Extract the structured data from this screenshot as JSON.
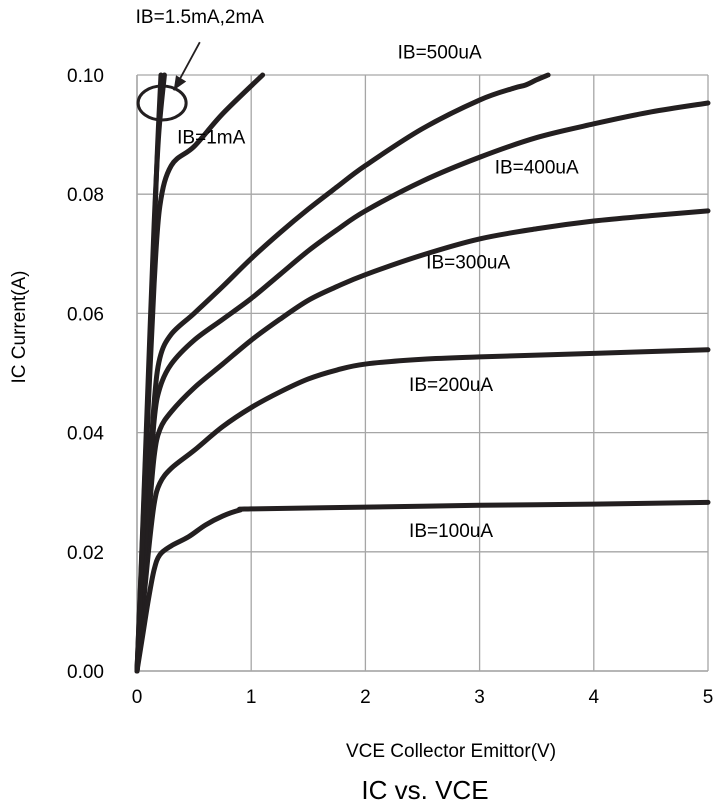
{
  "chart_data": {
    "type": "line",
    "title": "IC vs. VCE",
    "xlabel": "VCE Collector Emittor(V)",
    "ylabel": "IC Current(A)",
    "xlim": [
      0,
      5
    ],
    "ylim": [
      0,
      0.1
    ],
    "x_ticks": [
      0,
      1,
      2,
      3,
      4,
      5
    ],
    "x_tick_labels": [
      "0",
      "1",
      "2",
      "3",
      "4",
      "5"
    ],
    "y_ticks": [
      0,
      0.02,
      0.04,
      0.06,
      0.08,
      0.1
    ],
    "y_tick_labels": [
      "0.00",
      "0.02",
      "0.04",
      "0.06",
      "0.08",
      "0.10"
    ],
    "grid": true,
    "line_color": "#231f20",
    "grid_color": "#a6a6a6",
    "series": [
      {
        "name": "IB=100uA",
        "points": [
          [
            0,
            0
          ],
          [
            0.05,
            0.006
          ],
          [
            0.1,
            0.012
          ],
          [
            0.15,
            0.017
          ],
          [
            0.2,
            0.0195
          ],
          [
            0.3,
            0.021
          ],
          [
            0.45,
            0.0225
          ],
          [
            0.6,
            0.0245
          ],
          [
            0.75,
            0.026
          ],
          [
            0.9,
            0.027
          ],
          [
            1.0,
            0.0272
          ],
          [
            2,
            0.0275
          ],
          [
            3,
            0.0278
          ],
          [
            4,
            0.028
          ],
          [
            5,
            0.0283
          ]
        ]
      },
      {
        "name": "IB=200uA",
        "points": [
          [
            0,
            0
          ],
          [
            0.05,
            0.01
          ],
          [
            0.1,
            0.02
          ],
          [
            0.15,
            0.028
          ],
          [
            0.2,
            0.0315
          ],
          [
            0.3,
            0.034
          ],
          [
            0.5,
            0.037
          ],
          [
            0.75,
            0.041
          ],
          [
            1,
            0.0442
          ],
          [
            1.25,
            0.0468
          ],
          [
            1.5,
            0.049
          ],
          [
            1.75,
            0.0505
          ],
          [
            2,
            0.0515
          ],
          [
            2.5,
            0.0523
          ],
          [
            3,
            0.0527
          ],
          [
            4,
            0.0533
          ],
          [
            5,
            0.0539
          ]
        ]
      },
      {
        "name": "IB=300uA",
        "points": [
          [
            0,
            0
          ],
          [
            0.05,
            0.012
          ],
          [
            0.1,
            0.025
          ],
          [
            0.15,
            0.036
          ],
          [
            0.2,
            0.0405
          ],
          [
            0.3,
            0.0435
          ],
          [
            0.5,
            0.0475
          ],
          [
            0.75,
            0.0515
          ],
          [
            1,
            0.0555
          ],
          [
            1.25,
            0.059
          ],
          [
            1.5,
            0.0622
          ],
          [
            1.75,
            0.0645
          ],
          [
            2,
            0.0665
          ],
          [
            2.5,
            0.0698
          ],
          [
            3,
            0.0725
          ],
          [
            3.5,
            0.0742
          ],
          [
            4,
            0.0755
          ],
          [
            4.5,
            0.0764
          ],
          [
            5,
            0.0772
          ]
        ]
      },
      {
        "name": "IB=400uA",
        "points": [
          [
            0,
            0
          ],
          [
            0.05,
            0.014
          ],
          [
            0.1,
            0.028
          ],
          [
            0.15,
            0.042
          ],
          [
            0.2,
            0.0475
          ],
          [
            0.3,
            0.0515
          ],
          [
            0.5,
            0.0555
          ],
          [
            0.75,
            0.059
          ],
          [
            1,
            0.0625
          ],
          [
            1.25,
            0.0665
          ],
          [
            1.5,
            0.0705
          ],
          [
            1.75,
            0.074
          ],
          [
            2,
            0.0772
          ],
          [
            2.5,
            0.0822
          ],
          [
            3,
            0.0862
          ],
          [
            3.5,
            0.0895
          ],
          [
            4,
            0.0918
          ],
          [
            4.5,
            0.0938
          ],
          [
            5,
            0.0953
          ]
        ]
      },
      {
        "name": "IB=500uA",
        "points": [
          [
            0,
            0
          ],
          [
            0.05,
            0.015
          ],
          [
            0.1,
            0.03
          ],
          [
            0.15,
            0.045
          ],
          [
            0.2,
            0.0525
          ],
          [
            0.3,
            0.0565
          ],
          [
            0.5,
            0.06
          ],
          [
            0.75,
            0.0645
          ],
          [
            1,
            0.0692
          ],
          [
            1.25,
            0.0735
          ],
          [
            1.5,
            0.0775
          ],
          [
            1.75,
            0.0812
          ],
          [
            2,
            0.0848
          ],
          [
            2.5,
            0.091
          ],
          [
            3,
            0.0958
          ],
          [
            3.3,
            0.0978
          ],
          [
            3.4,
            0.0983
          ],
          [
            3.5,
            0.0992
          ],
          [
            3.6,
            0.1
          ]
        ]
      },
      {
        "name": "IB=1mA",
        "points": [
          [
            0,
            0
          ],
          [
            0.05,
            0.02
          ],
          [
            0.1,
            0.045
          ],
          [
            0.15,
            0.065
          ],
          [
            0.2,
            0.078
          ],
          [
            0.3,
            0.0848
          ],
          [
            0.5,
            0.088
          ],
          [
            0.75,
            0.0935
          ],
          [
            1.1,
            0.1
          ]
        ]
      },
      {
        "name": "IB=1.5mA,2mA",
        "points": [
          [
            0,
            0
          ],
          [
            0.05,
            0.023
          ],
          [
            0.1,
            0.048
          ],
          [
            0.15,
            0.073
          ],
          [
            0.18,
            0.088
          ],
          [
            0.21,
            0.1
          ]
        ]
      },
      {
        "name": "IB=1.5mA,2mA",
        "points": [
          [
            0,
            0
          ],
          [
            0.05,
            0.024
          ],
          [
            0.1,
            0.05
          ],
          [
            0.15,
            0.075
          ],
          [
            0.19,
            0.09
          ],
          [
            0.24,
            0.1
          ]
        ]
      }
    ],
    "annotations": [
      {
        "text": "IB=1.5mA,2mA",
        "x": 0.55,
        "y": 0.1087
      },
      {
        "text": "IB=500uA",
        "x": 2.65,
        "y": 0.1028
      },
      {
        "text": "IB=1mA",
        "x": 0.65,
        "y": 0.0885
      },
      {
        "text": "IB=400uA",
        "x": 3.5,
        "y": 0.0835
      },
      {
        "text": "IB=300uA",
        "x": 2.9,
        "y": 0.0675
      },
      {
        "text": "IB=200uA",
        "x": 2.75,
        "y": 0.047
      },
      {
        "text": "IB=100uA",
        "x": 2.75,
        "y": 0.0225
      }
    ],
    "callout": {
      "x": 0.22,
      "y": 0.0953,
      "to_x": 0.55,
      "to_y": 0.1055
    }
  }
}
